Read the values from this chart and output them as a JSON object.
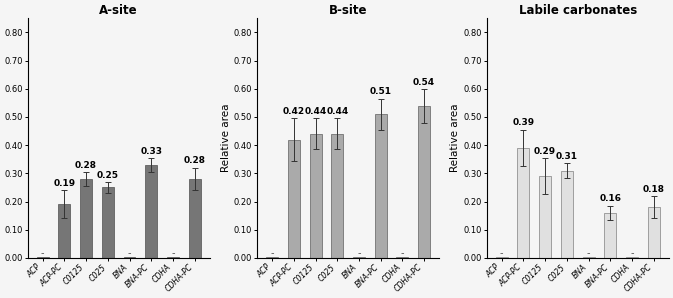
{
  "categories": [
    "ACP",
    "ACP-PC",
    "C0125",
    "C025",
    "BNA",
    "BNA-PC",
    "CDHA",
    "CDHA-PC"
  ],
  "panels": [
    {
      "title": "A-site",
      "ylabel": "",
      "values": [
        0.005,
        0.19,
        0.28,
        0.25,
        0.005,
        0.33,
        0.005,
        0.28
      ],
      "errors": [
        0.0,
        0.05,
        0.025,
        0.02,
        0.0,
        0.025,
        0.0,
        0.04
      ],
      "labels": [
        null,
        "0.19",
        "0.28",
        "0.25",
        null,
        "0.33",
        null,
        "0.28"
      ],
      "bar_color": "#767676",
      "edge_color": "#505050",
      "bar_width": 0.55
    },
    {
      "title": "B-site",
      "ylabel": "Relative area",
      "values": [
        0.005,
        0.42,
        0.44,
        0.44,
        0.005,
        0.51,
        0.005,
        0.54
      ],
      "errors": [
        0.0,
        0.075,
        0.055,
        0.055,
        0.0,
        0.055,
        0.0,
        0.06
      ],
      "labels": [
        null,
        "0.42",
        "0.44",
        "0.44",
        null,
        "0.51",
        null,
        "0.54"
      ],
      "bar_color": "#aaaaaa",
      "edge_color": "#606060",
      "bar_width": 0.55
    },
    {
      "title": "Labile carbonates",
      "ylabel": "Relative area",
      "values": [
        0.005,
        0.39,
        0.29,
        0.31,
        0.005,
        0.16,
        0.005,
        0.18
      ],
      "errors": [
        0.0,
        0.065,
        0.065,
        0.025,
        0.0,
        0.025,
        0.0,
        0.04
      ],
      "labels": [
        null,
        "0.39",
        "0.29",
        "0.31",
        null,
        "0.16",
        null,
        "0.18"
      ],
      "bar_color": "#e0e0e0",
      "edge_color": "#808080",
      "bar_width": 0.55
    }
  ],
  "ylim": [
    0.0,
    0.85
  ],
  "yticks": [
    0.0,
    0.1,
    0.2,
    0.3,
    0.4,
    0.5,
    0.6,
    0.7,
    0.8
  ],
  "small_marker": "-",
  "small_marker_fontsize": 7,
  "small_marker_color": "#555555",
  "tick_fontsize": 6.0,
  "title_fontsize": 8.5,
  "ylabel_fontsize": 7.5,
  "xticklabel_fontsize": 5.5,
  "background_color": "#f5f5f5",
  "value_label_fontsize": 6.5
}
